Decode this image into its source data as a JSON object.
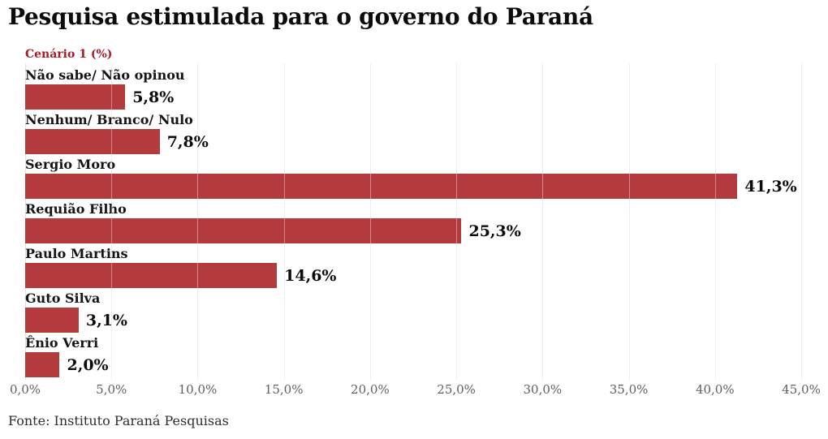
{
  "header": {
    "title": "Pesquisa estimulada para o governo do Paraná",
    "subtitle": "Cenário 1 (%)"
  },
  "footer": {
    "source": "Fonte: Instituto Paraná Pesquisas"
  },
  "chart_data": {
    "type": "bar",
    "orientation": "horizontal",
    "title": "Pesquisa estimulada para o governo do Paraná",
    "subtitle": "Cenário 1 (%)",
    "categories": [
      "Não sabe/ Não opinou",
      "Nenhum/ Branco/ Nulo",
      "Sergio Moro",
      "Requião Filho",
      "Paulo Martins",
      "Guto Silva",
      "Ênio Verri"
    ],
    "values": [
      5.8,
      7.8,
      41.3,
      25.3,
      14.6,
      3.1,
      2.0
    ],
    "value_labels": [
      "5,8%",
      "7,8%",
      "41,3%",
      "25,3%",
      "14,6%",
      "3,1%",
      "2,0%"
    ],
    "xlabel": "",
    "ylabel": "",
    "xlim": [
      0,
      45
    ],
    "x_tick_values": [
      0,
      5,
      10,
      15,
      20,
      25,
      30,
      35,
      40,
      45
    ],
    "x_ticks": [
      "0,0%",
      "5,0%",
      "10,0%",
      "15,0%",
      "20,0%",
      "25,0%",
      "30,0%",
      "35,0%",
      "40,0%",
      "45,0%"
    ],
    "grid": true,
    "legend": false,
    "colors": {
      "bar": "#b33b3e",
      "subtitle_text": "#a31c26",
      "title_text": "#0b0b0b",
      "category_text": "#151515",
      "value_text": "#0b0b0b",
      "axis_text": "#5f5f5f",
      "grid_line": "#e3e3e3",
      "source_text": "#2e2e2e",
      "background": "#ffffff"
    }
  }
}
